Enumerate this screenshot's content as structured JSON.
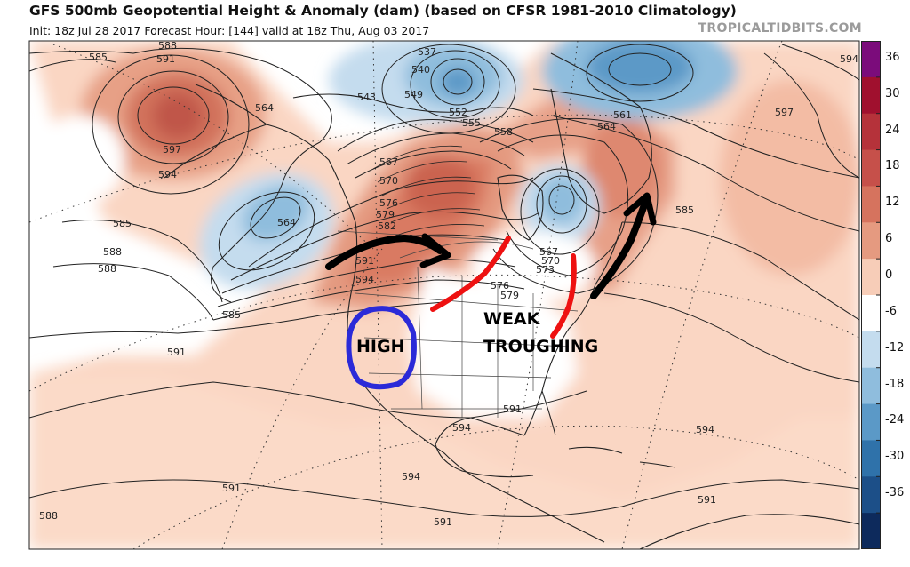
{
  "header": {
    "title": "GFS 500mb Geopotential Height & Anomaly (dam) (based on CFSR 1981-2010 Climatology)",
    "subtitle": "Init: 18z Jul 28 2017   Forecast Hour: [144]   valid at 18z Thu, Aug 03 2017",
    "credit": "TROPICALTIDBITS.COM"
  },
  "colorbar": {
    "ticks": [
      "36",
      "30",
      "24",
      "18",
      "12",
      "6",
      "0",
      "-6",
      "-12",
      "-18",
      "-24",
      "-30",
      "-36"
    ],
    "colors": [
      "#7b0c7b",
      "#a0102e",
      "#b5323a",
      "#c6504a",
      "#d6735e",
      "#e59a80",
      "#f7cdb8",
      "#ffffff",
      "#c4dcee",
      "#8fbddd",
      "#5b99c7",
      "#2f72aa",
      "#1c4f88",
      "#0d2a5c"
    ]
  },
  "annotations": {
    "high_label": "HIGH",
    "weak_label": "WEAK",
    "trough_label": "TROUGHING"
  },
  "contour_labels": {
    "h585_nw": "585",
    "h588_nw": "588",
    "h591_nw": "591",
    "h597_nw": "597",
    "h594_nw": "594",
    "h564_ak": "564",
    "h564_pac": "564",
    "h543": "543",
    "h549": "549",
    "h537": "537",
    "h540": "540",
    "h561": "561",
    "h564_gr": "564",
    "h597_ne": "597",
    "h594_ne": "594",
    "h567": "567",
    "h570": "570",
    "h576": "576",
    "h579": "579",
    "h582": "582",
    "h588_us": "588",
    "h591_us": "591",
    "h594_us": "594",
    "h585_w1": "585",
    "h588_w1": "588",
    "h588_w2": "588",
    "h585_pac": "585",
    "h591_pac": "591",
    "h567_gl": "567",
    "h570_gl": "570",
    "h573_gl": "573",
    "h576_gl": "576",
    "h579_gl": "579",
    "h585_atl": "585",
    "h591_se": "591",
    "h594_mx": "594",
    "h594_gm": "594",
    "h591_sw": "591",
    "h588_sw": "588",
    "h591_s": "591",
    "h591_carib": "591",
    "h594_carib": "594",
    "h558": "558",
    "h555": "555",
    "h552": "552"
  }
}
